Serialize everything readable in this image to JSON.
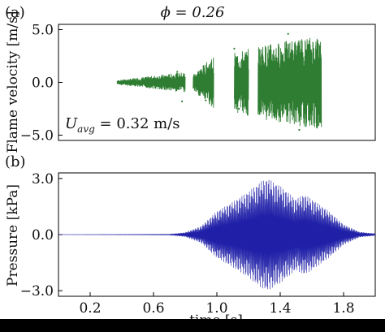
{
  "chart_data": [
    {
      "panel_label": "(a)",
      "type": "line",
      "title": "ϕ = 0.26",
      "xlabel": "",
      "ylabel": "Flame velocity [m/s]",
      "annotation": "U_avg = 0.32 m/s",
      "annotation_parts": {
        "base": "U",
        "sub": "avg",
        "rest": " = 0.32 m/s"
      },
      "xlim": [
        0.0,
        2.0
      ],
      "ylim": [
        -5.5,
        5.5
      ],
      "yticks": [
        5.0,
        0.0,
        -5.0
      ],
      "ytick_labels": [
        "5.0",
        "0.0",
        "−5.0"
      ],
      "grid": false,
      "series": [
        {
          "color": "#2e7d32",
          "segments": [
            {
              "x_start": 0.37,
              "x_end": 0.8,
              "amp_start": 0.2,
              "amp_end": 1.0
            },
            {
              "x_start": 0.85,
              "x_end": 0.98,
              "amp_start": 0.8,
              "amp_end": 2.5
            },
            {
              "x_start": 1.11,
              "x_end": 1.2,
              "amp_start": 2.8,
              "amp_end": 3.2
            },
            {
              "x_start": 1.26,
              "x_end": 1.66,
              "amp_start": 3.5,
              "amp_end": 4.5
            }
          ],
          "markers": [
            {
              "x": 0.75,
              "y": 1.0
            },
            {
              "x": 0.78,
              "y": -1.8
            },
            {
              "x": 0.93,
              "y": -1.7
            },
            {
              "x": 1.11,
              "y": 3.2
            },
            {
              "x": 1.14,
              "y": -2.5
            },
            {
              "x": 1.45,
              "y": 4.6
            },
            {
              "x": 1.52,
              "y": -4.5
            }
          ]
        }
      ]
    },
    {
      "panel_label": "(b)",
      "type": "line",
      "title": "",
      "xlabel": "time [s]",
      "ylabel": "Pressure [kPa]",
      "xlim": [
        0.0,
        2.0
      ],
      "ylim": [
        -3.3,
        3.3
      ],
      "xticks": [
        0.2,
        0.6,
        1.0,
        1.4,
        1.8
      ],
      "xtick_labels": [
        "0.2",
        "0.6",
        "1.0",
        "1.4",
        "1.8"
      ],
      "yticks": [
        3.0,
        0.0,
        -3.0
      ],
      "ytick_labels": [
        "3.0",
        "0.0",
        "−3.0"
      ],
      "grid": false,
      "series": [
        {
          "color": "#1f1fa8",
          "envelope": [
            {
              "x": 0.0,
              "amp": 0.0
            },
            {
              "x": 0.7,
              "amp": 0.02
            },
            {
              "x": 0.8,
              "amp": 0.12
            },
            {
              "x": 0.9,
              "amp": 0.45
            },
            {
              "x": 1.0,
              "amp": 1.25
            },
            {
              "x": 1.1,
              "amp": 1.75
            },
            {
              "x": 1.2,
              "amp": 2.3
            },
            {
              "x": 1.28,
              "amp": 2.85
            },
            {
              "x": 1.32,
              "amp": 3.0
            },
            {
              "x": 1.4,
              "amp": 2.6
            },
            {
              "x": 1.5,
              "amp": 1.9
            },
            {
              "x": 1.55,
              "amp": 2.15
            },
            {
              "x": 1.6,
              "amp": 1.9
            },
            {
              "x": 1.7,
              "amp": 1.3
            },
            {
              "x": 1.8,
              "amp": 0.55
            },
            {
              "x": 1.9,
              "amp": 0.15
            },
            {
              "x": 2.0,
              "amp": 0.05
            }
          ]
        }
      ]
    }
  ]
}
